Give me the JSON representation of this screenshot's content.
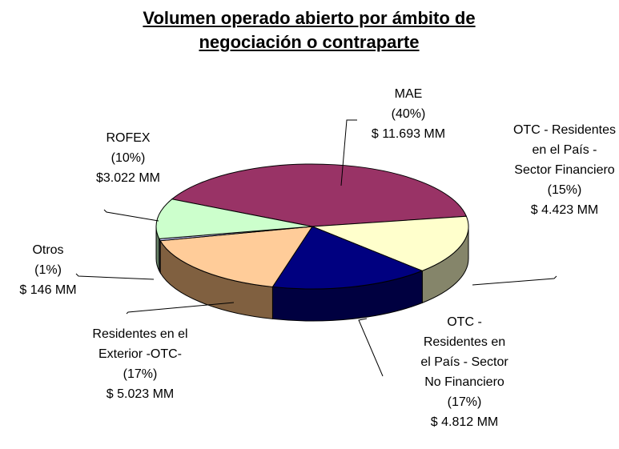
{
  "chart_data": {
    "type": "pie",
    "title": "Volumen operado abierto por ámbito de negociación o contraparte",
    "categories": [
      "MAE",
      "OTC - Residentes en el País - Sector Financiero",
      "OTC - Residentes en el País - Sector No Financiero",
      "Residentes en el Exterior -OTC-",
      "Otros",
      "ROFEX"
    ],
    "values": [
      11693,
      4423,
      4812,
      5023,
      146,
      3022
    ],
    "value_labels": [
      "$ 11.693 MM",
      "$ 4.423 MM",
      "$ 4.812 MM",
      "$ 5.023 MM",
      "$ 146 MM",
      "$3.022 MM"
    ],
    "percents": [
      40,
      15,
      17,
      17,
      1,
      10
    ],
    "percent_labels": [
      "(40%)",
      "(15%)",
      "(17%)",
      "(17%)",
      "(1%)",
      "(10%)"
    ],
    "colors": [
      "#993366",
      "#ffffcc",
      "#000080",
      "#ffcc99",
      "#ccccff",
      "#ccffcc"
    ],
    "side_colors": [
      "#4d1a33",
      "#85856a",
      "#000040",
      "#806040",
      "#66667f",
      "#668066"
    ]
  }
}
